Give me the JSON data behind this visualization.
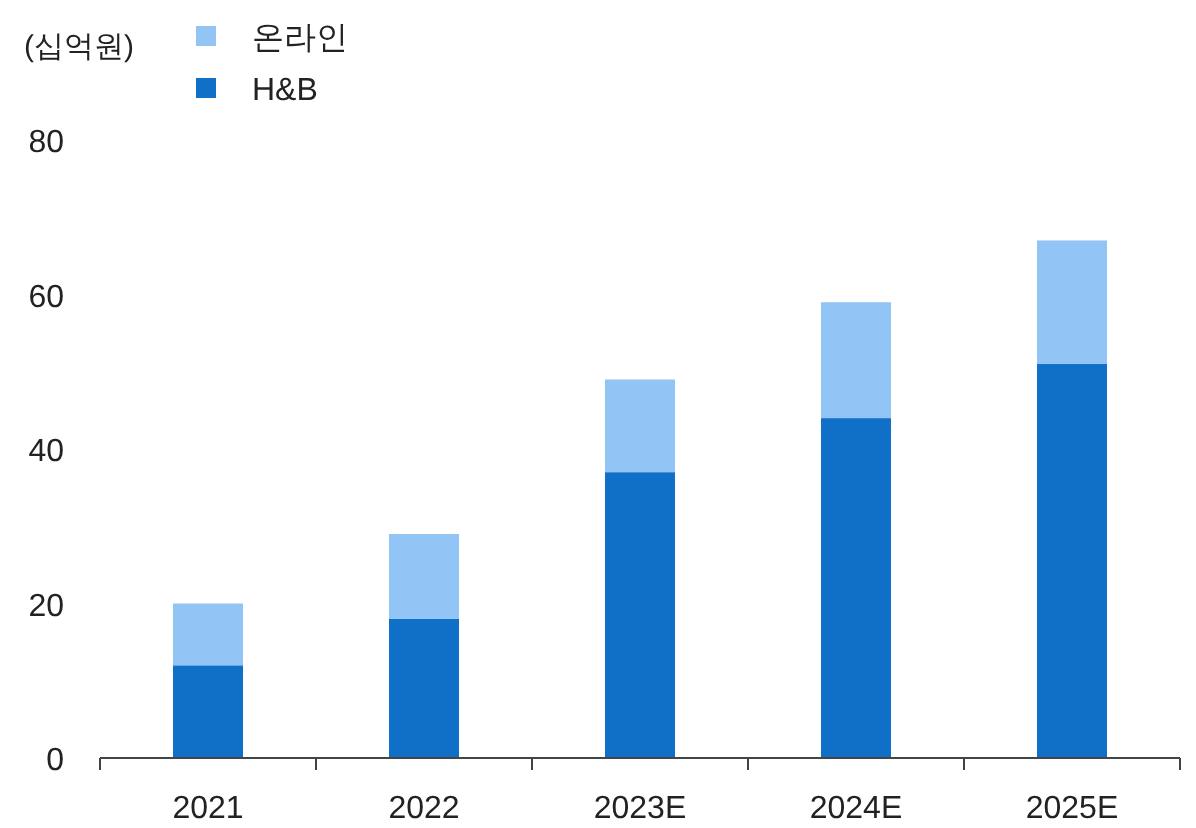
{
  "chart_data": {
    "type": "bar",
    "stacked": true,
    "ylabel": "(십억원)",
    "categories": [
      "2021",
      "2022",
      "2023E",
      "2024E",
      "2025E"
    ],
    "series": [
      {
        "name": "H&B",
        "color": "#1070c8",
        "values": [
          12,
          18,
          37,
          44,
          51
        ]
      },
      {
        "name": "온라인",
        "color": "#92c5f5",
        "values": [
          8,
          11,
          12,
          15,
          16
        ]
      }
    ],
    "ylim": [
      0,
      80
    ],
    "yticks": [
      0,
      20,
      40,
      60,
      80
    ],
    "legend": "top left"
  }
}
